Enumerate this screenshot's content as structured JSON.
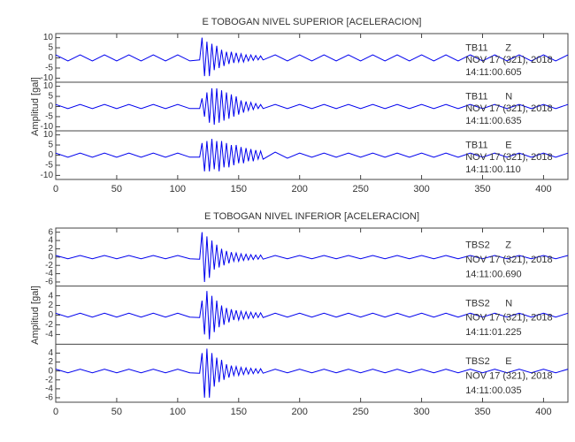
{
  "chart_data": [
    {
      "type": "line",
      "title": "E TOBOGAN NIVEL SUPERIOR [ACELERACION]",
      "y_label": "Amplitud [gal]",
      "color": "#0000ee",
      "xlim": [
        0,
        420
      ],
      "xticks": [
        0,
        50,
        100,
        150,
        200,
        250,
        300,
        350,
        400
      ],
      "x": [
        0,
        10,
        20,
        30,
        40,
        50,
        60,
        70,
        80,
        90,
        100,
        110,
        118,
        120,
        122,
        124,
        126,
        128,
        130,
        132,
        134,
        136,
        138,
        140,
        142,
        144,
        146,
        148,
        150,
        152,
        154,
        156,
        158,
        160,
        162,
        164,
        166,
        168,
        170,
        180,
        190,
        200,
        210,
        220,
        230,
        240,
        250,
        260,
        270,
        280,
        290,
        300,
        310,
        320,
        330,
        340,
        350,
        360,
        370,
        380,
        390,
        400,
        410,
        420
      ],
      "panels": [
        {
          "station": "TB11",
          "component": "Z",
          "date": "NOV 17 (321), 2018",
          "time": "14:11:00.605",
          "ylim": [
            -12,
            12
          ],
          "yticks": [
            -10,
            -5,
            0,
            5,
            10
          ],
          "values": [
            1.5,
            -1.5,
            1.5,
            -1.5,
            1.5,
            -1.5,
            1.5,
            -1.5,
            1.5,
            -1.5,
            1.5,
            -1.5,
            -1,
            10,
            -9,
            8,
            -9,
            7,
            -6,
            6,
            -5,
            4,
            -4,
            3,
            -3,
            3,
            -2.5,
            2.5,
            -2,
            2,
            -2,
            1.5,
            -1.5,
            1.5,
            -1.2,
            1.2,
            -1,
            1,
            -1,
            1.5,
            -1.5,
            1.5,
            -1.5,
            1.5,
            -1.5,
            1.5,
            -1.5,
            1.5,
            -1.5,
            1.5,
            -1.5,
            1.5,
            -1.5,
            1.5,
            -1.5,
            1.5,
            -1.5,
            1.5,
            -1.5,
            1.5,
            -1.5,
            1.5,
            -1.5,
            1.5
          ]
        },
        {
          "station": "TB11",
          "component": "N",
          "date": "NOV 17 (321), 2018",
          "time": "14:11:00.635",
          "ylim": [
            -12,
            12
          ],
          "yticks": [
            -10,
            -5,
            0,
            5,
            10
          ],
          "values": [
            1,
            -1,
            1,
            -1,
            1,
            -1,
            1,
            -1,
            1,
            -1,
            1,
            -1,
            -1,
            4,
            -5,
            7,
            -8,
            9,
            -9,
            9,
            -8,
            8,
            -7,
            7,
            -6,
            6,
            -5,
            5,
            -4,
            3,
            -3,
            2.5,
            -2,
            2,
            -1.5,
            1.5,
            -1,
            1,
            -1,
            1,
            -1,
            1,
            -1,
            1,
            -1,
            1,
            -1,
            1,
            -1,
            1,
            -1,
            1,
            -1,
            1,
            -1,
            1,
            -1,
            1,
            -1,
            1,
            -1,
            1,
            -1,
            1
          ]
        },
        {
          "station": "TB11",
          "component": "E",
          "date": "NOV 17 (321), 2018",
          "time": "14:11:00.110",
          "ylim": [
            -12,
            12
          ],
          "yticks": [
            -10,
            -5,
            0,
            5,
            10
          ],
          "values": [
            1,
            -1,
            1,
            -1,
            1,
            -1,
            1,
            -1,
            1,
            -1,
            1,
            -1,
            -1,
            6,
            -8,
            7,
            -8,
            8,
            -7,
            7,
            -8,
            7,
            -6,
            6,
            -6,
            5,
            -5,
            5,
            -4,
            4,
            -4,
            3.5,
            -3,
            3,
            -3,
            2.5,
            -2,
            2,
            -2,
            1.5,
            -1.5,
            1,
            -1,
            1,
            -1,
            1,
            -1,
            1,
            -1,
            1,
            -1,
            1,
            -1,
            1,
            -1,
            1,
            -1,
            1,
            -1,
            1,
            -1,
            1,
            -1,
            1
          ]
        }
      ]
    },
    {
      "type": "line",
      "title": "E TOBOGAN NIVEL INFERIOR [ACELERACION]",
      "y_label": "Amplitud [gal]",
      "color": "#0000ee",
      "xlim": [
        0,
        420
      ],
      "xticks": [
        0,
        50,
        100,
        150,
        200,
        250,
        300,
        350,
        400
      ],
      "x": [
        0,
        10,
        20,
        30,
        40,
        50,
        60,
        70,
        80,
        90,
        100,
        110,
        118,
        120,
        122,
        124,
        126,
        128,
        130,
        132,
        134,
        136,
        138,
        140,
        142,
        144,
        146,
        148,
        150,
        152,
        154,
        156,
        158,
        160,
        162,
        164,
        166,
        168,
        170,
        180,
        190,
        200,
        210,
        220,
        230,
        240,
        250,
        260,
        270,
        280,
        290,
        300,
        310,
        320,
        330,
        340,
        350,
        360,
        370,
        380,
        390,
        400,
        410,
        420
      ],
      "panels": [
        {
          "station": "TBS2",
          "component": "Z",
          "date": "NOV 17 (321), 2018",
          "time": "14:11:00.690",
          "ylim": [
            -7,
            7
          ],
          "yticks": [
            -6,
            -4,
            -2,
            0,
            2,
            4,
            6
          ],
          "values": [
            0.4,
            -0.4,
            0.4,
            -0.4,
            0.4,
            -0.4,
            0.4,
            -0.4,
            0.4,
            -0.4,
            0.4,
            -0.4,
            -0.5,
            6,
            -6,
            5,
            -5,
            4,
            -3,
            3,
            -2.5,
            2,
            -2,
            1.5,
            -1.5,
            1.2,
            -1,
            1,
            -1,
            0.8,
            -0.8,
            0.7,
            -0.7,
            0.6,
            -0.6,
            0.5,
            -0.5,
            0.5,
            -0.5,
            0.4,
            -0.4,
            0.4,
            -0.4,
            0.4,
            -0.4,
            0.4,
            -0.4,
            0.4,
            -0.4,
            0.4,
            -0.4,
            0.4,
            -0.4,
            0.4,
            -0.4,
            0.4,
            -0.4,
            0.4,
            -0.4,
            0.4,
            -0.4,
            0.4,
            -0.4,
            0.4
          ]
        },
        {
          "station": "TBS2",
          "component": "N",
          "date": "NOV 17 (321), 2018",
          "time": "14:11:01.225",
          "ylim": [
            -6,
            6
          ],
          "yticks": [
            -4,
            -2,
            0,
            2,
            4
          ],
          "values": [
            0.4,
            -0.4,
            0.4,
            -0.4,
            0.4,
            -0.4,
            0.4,
            -0.4,
            0.4,
            -0.4,
            0.4,
            -0.4,
            -0.5,
            3,
            -4,
            5,
            -5,
            4,
            -3.5,
            3,
            -2.5,
            2,
            -2,
            1.5,
            -1.5,
            1.2,
            -1,
            1,
            -1,
            0.8,
            -0.8,
            0.7,
            -0.7,
            0.6,
            -0.6,
            0.5,
            -0.5,
            0.5,
            -0.5,
            0.4,
            -0.4,
            0.4,
            -0.4,
            0.4,
            -0.4,
            0.4,
            -0.4,
            0.4,
            -0.4,
            0.4,
            -0.4,
            0.4,
            -0.4,
            0.4,
            -0.4,
            0.4,
            -0.4,
            0.4,
            -0.4,
            0.4,
            -0.4,
            0.4,
            -0.4,
            0.4
          ]
        },
        {
          "station": "TBS2",
          "component": "E",
          "date": "NOV 17 (321), 2018",
          "time": "14:11:00.035",
          "ylim": [
            -7,
            6
          ],
          "yticks": [
            -6,
            -4,
            -2,
            0,
            2,
            4
          ],
          "values": [
            0.4,
            -0.4,
            0.4,
            -0.4,
            0.4,
            -0.4,
            0.4,
            -0.4,
            0.4,
            -0.4,
            0.4,
            -0.4,
            -0.5,
            4,
            -6,
            5,
            -6,
            4,
            -3.5,
            3,
            -2.5,
            2.5,
            -2,
            1.5,
            -1.5,
            1.2,
            -1,
            1,
            -1,
            0.8,
            -0.8,
            0.7,
            -0.7,
            0.6,
            -0.6,
            0.5,
            -0.5,
            0.5,
            -0.5,
            0.4,
            -0.4,
            0.4,
            -0.4,
            0.4,
            -0.4,
            0.4,
            -0.4,
            0.4,
            -0.4,
            0.4,
            -0.4,
            0.4,
            -0.4,
            0.4,
            -0.4,
            0.4,
            -0.4,
            0.4,
            -0.4,
            0.4,
            -0.4,
            0.4,
            -0.4,
            0.4
          ]
        }
      ]
    }
  ]
}
